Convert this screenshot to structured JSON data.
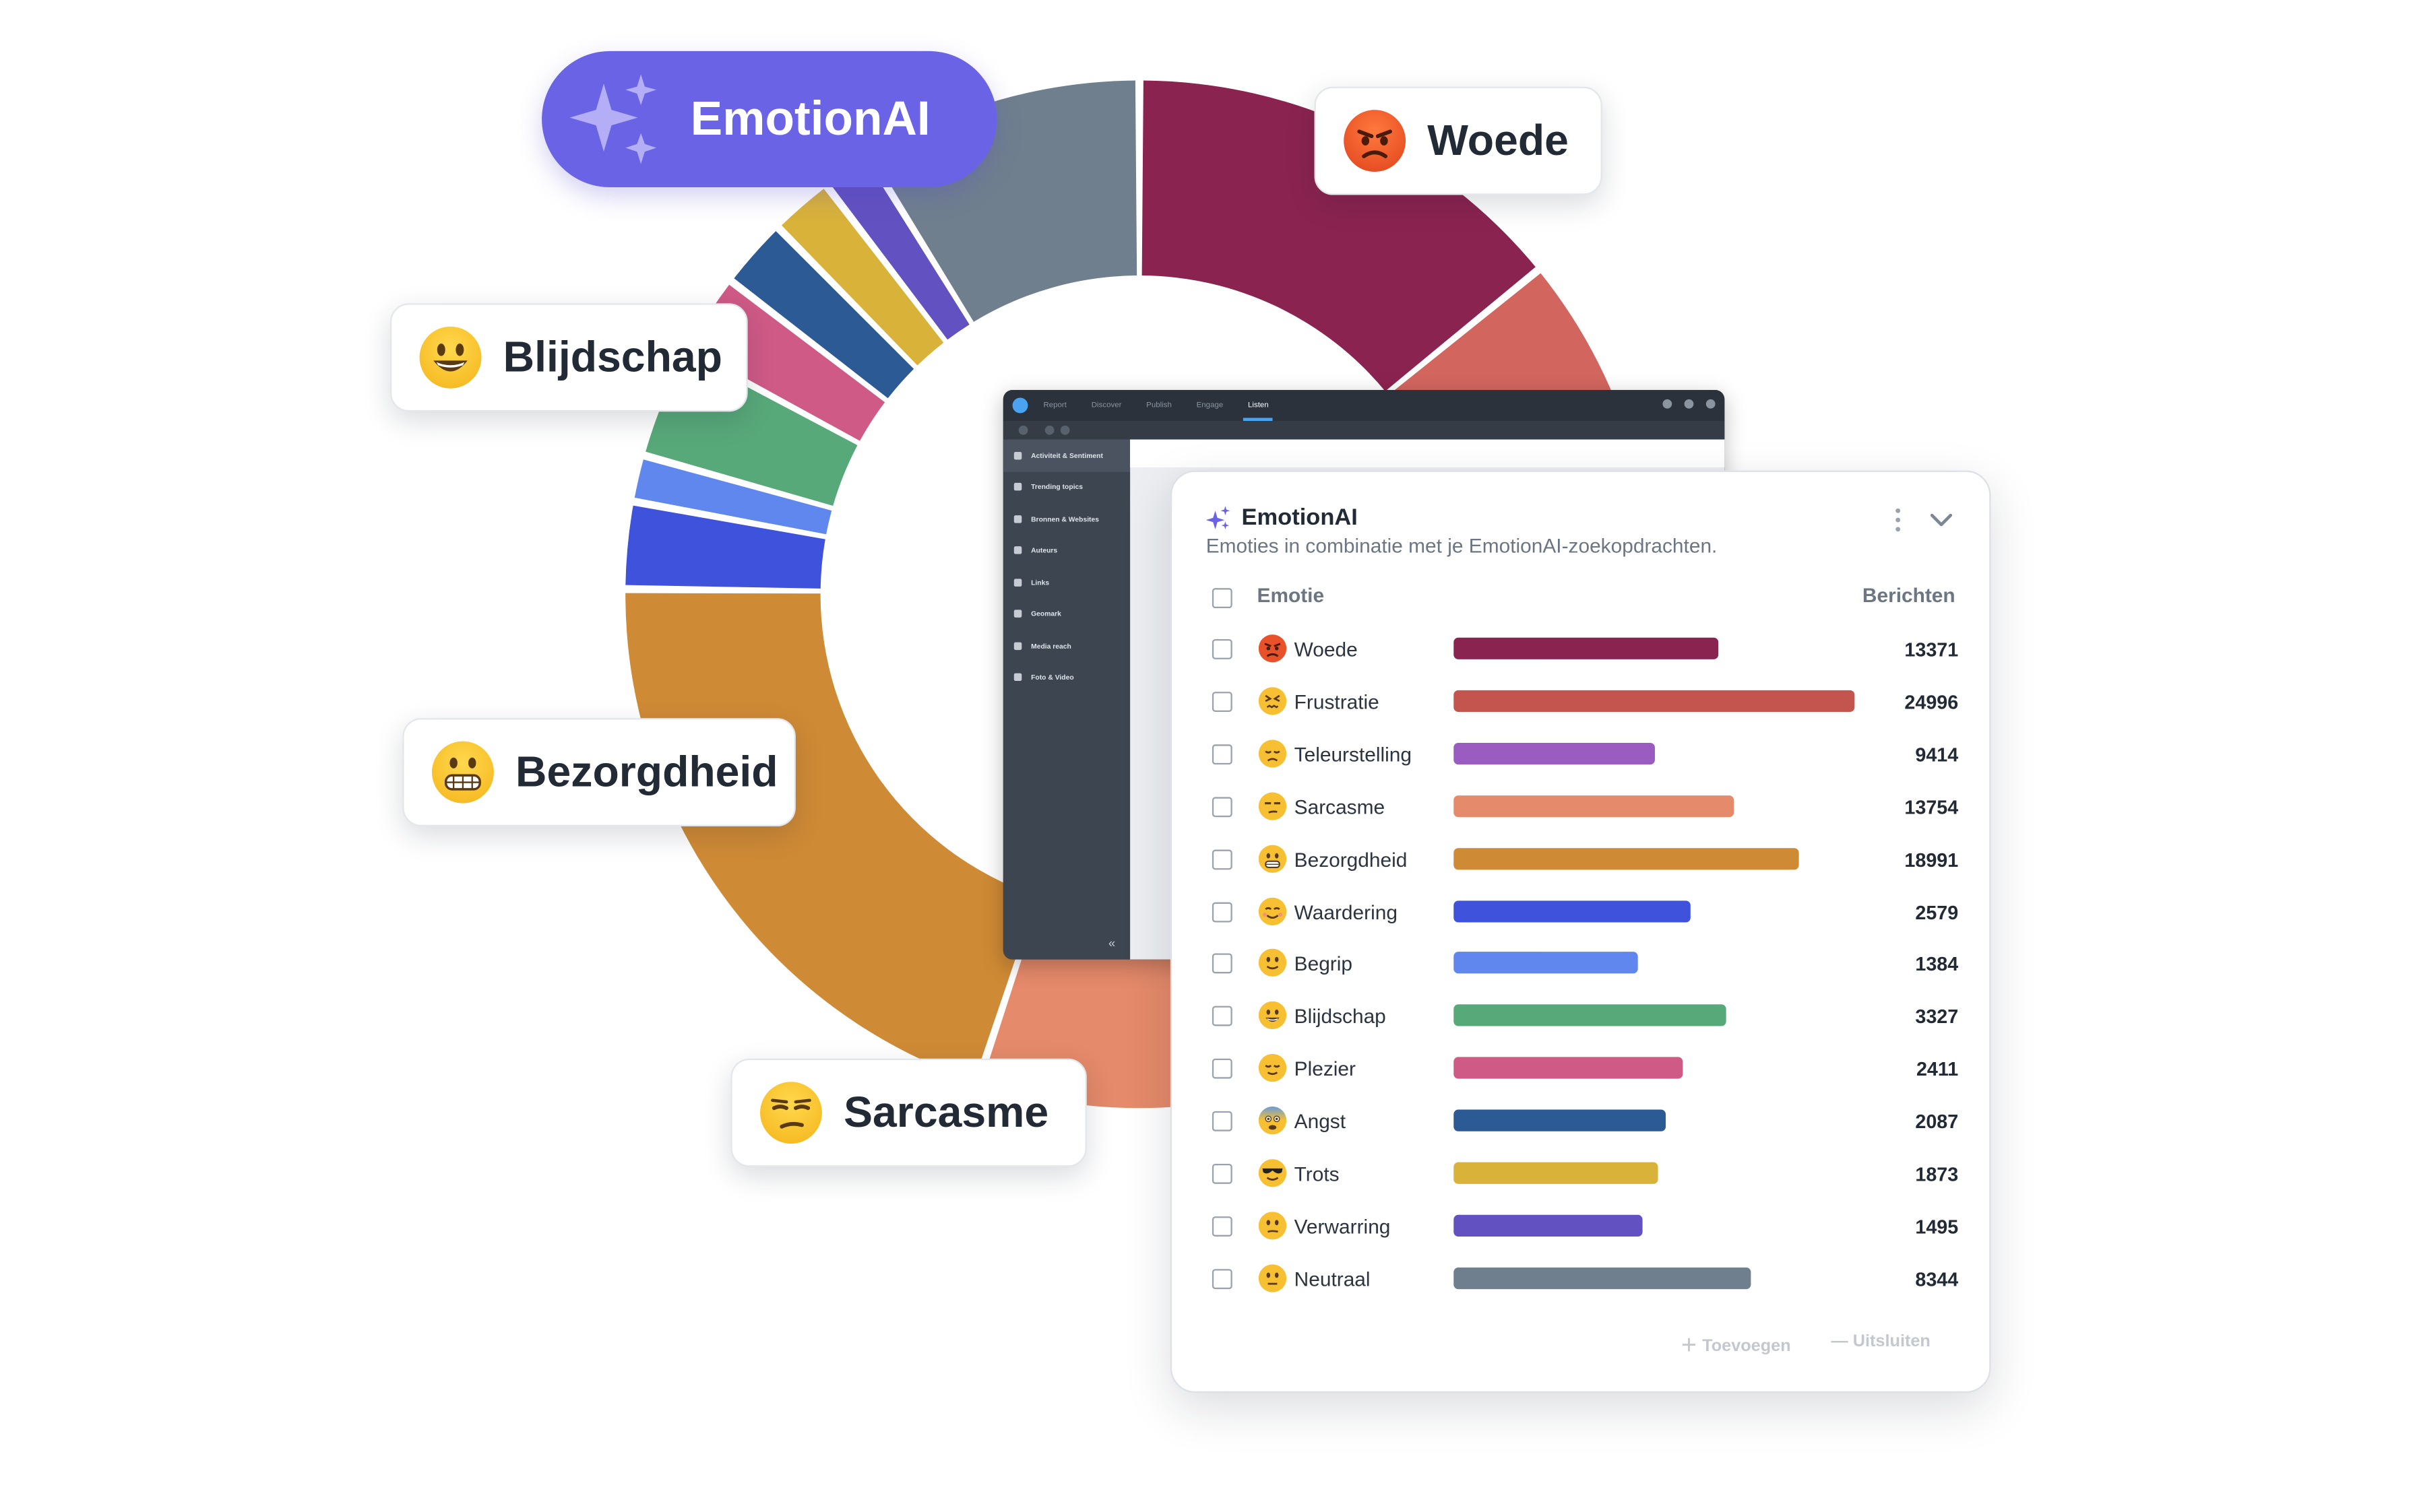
{
  "labels": {
    "emotionai": "EmotionAI",
    "woede": "Woede",
    "blijdschap": "Blijdschap",
    "bezorgdheid": "Bezorgdheid",
    "sarcasme": "Sarcasme"
  },
  "app": {
    "nav_tabs": [
      "Report",
      "Discover",
      "Publish",
      "Engage",
      "Listen"
    ],
    "active_tab": "Listen",
    "sidebar": [
      "Activiteit & Sentiment",
      "Trending topics",
      "Bronnen & Websites",
      "Auteurs",
      "Links",
      "Geomark",
      "Media reach",
      "Foto & Video"
    ],
    "collapse": "«"
  },
  "card": {
    "title": "EmotionAI",
    "subtitle": "Emoties in combinatie met je EmotionAI-zoekopdrachten.",
    "col_emotion": "Emotie",
    "col_messages": "Berichten",
    "add": "Toevoegen",
    "exclude": "Uitsluiten"
  },
  "chart_data": {
    "type": "bar",
    "categories": [
      "Woede",
      "Frustratie",
      "Teleurstelling",
      "Sarcasme",
      "Bezorgdheid",
      "Waardering",
      "Begrip",
      "Blijdschap",
      "Plezier",
      "Angst",
      "Trots",
      "Verwarring",
      "Neutraal"
    ],
    "values": [
      13371,
      24996,
      9414,
      13754,
      18991,
      2579,
      1384,
      3327,
      2411,
      2087,
      1873,
      1495,
      8344
    ],
    "bar_fill_fraction": [
      0.66,
      1.0,
      0.5,
      0.7,
      0.86,
      0.59,
      0.46,
      0.68,
      0.57,
      0.53,
      0.51,
      0.47,
      0.74
    ],
    "colors": [
      "#8b2350",
      "#c4544e",
      "#9b5cc2",
      "#e58a6a",
      "#cf8a35",
      "#3e52dc",
      "#5f87ee",
      "#58a97a",
      "#cf5a86",
      "#2b5a94",
      "#d9b23a",
      "#6251c0",
      "#707f8e"
    ]
  },
  "donut": {
    "type": "pie",
    "segments": [
      {
        "label": "Woede",
        "value": 13371,
        "color": "#8b2350"
      },
      {
        "label": "Frustratie",
        "value": 24996,
        "color": "#d2665f"
      },
      {
        "label": "Sarcasme",
        "value": 13754,
        "color": "#e58a6a"
      },
      {
        "label": "Bezorgdheid",
        "value": 18991,
        "color": "#cf8a35"
      },
      {
        "label": "Waardering",
        "value": 2579,
        "color": "#3e52dc"
      },
      {
        "label": "Begrip",
        "value": 1384,
        "color": "#5f87ee"
      },
      {
        "label": "Blijdschap",
        "value": 3327,
        "color": "#58a97a"
      },
      {
        "label": "Plezier",
        "value": 2411,
        "color": "#cf5a86"
      },
      {
        "label": "Angst",
        "value": 2087,
        "color": "#2b5a94"
      },
      {
        "label": "Trots",
        "value": 1873,
        "color": "#d9b23a"
      },
      {
        "label": "Verwarring",
        "value": 1495,
        "color": "#6251c0"
      },
      {
        "label": "Neutraal",
        "value": 8344,
        "color": "#707f8e"
      }
    ]
  },
  "emoji": {
    "Woede": "angry-face-icon",
    "Frustratie": "confounded-face-icon",
    "Teleurstelling": "disappointed-face-icon",
    "Sarcasme": "unamused-face-icon",
    "Bezorgdheid": "grimacing-face-icon",
    "Waardering": "relieved-smile-face-icon",
    "Begrip": "slight-smile-face-icon",
    "Blijdschap": "grinning-face-icon",
    "Plezier": "relieved-face-icon",
    "Angst": "anxious-face-icon",
    "Trots": "sunglasses-face-icon",
    "Verwarring": "confused-face-icon",
    "Neutraal": "neutral-face-icon"
  }
}
